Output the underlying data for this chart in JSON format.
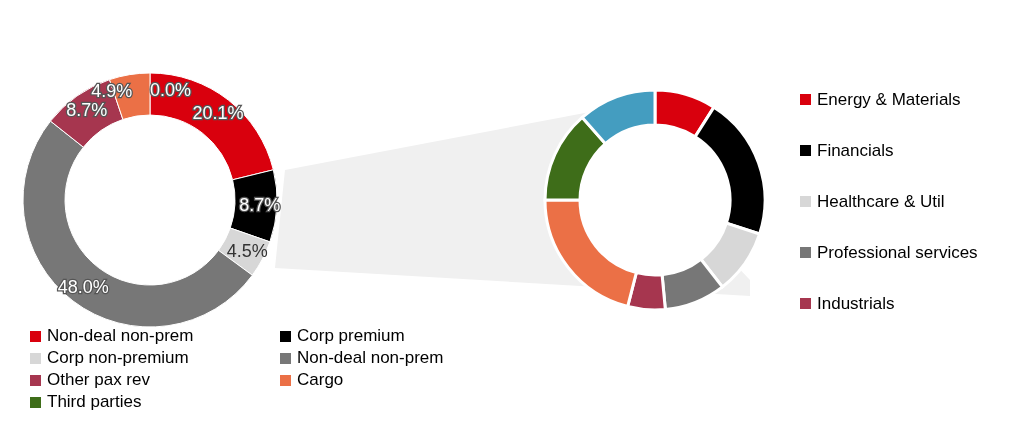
{
  "chart_data": [
    {
      "type": "donut",
      "categories": [
        "Non-deal non-prem",
        "Corp premium",
        "Corp non-premium",
        "Non-deal non-prem",
        "Other pax rev",
        "Cargo",
        "Third parties"
      ],
      "values": [
        20.1,
        8.7,
        4.5,
        48.0,
        8.7,
        4.9,
        0.0
      ],
      "colors": [
        "#d9000d",
        "#000000",
        "#d7d7d7",
        "#777777",
        "#a6364f",
        "#eb7046",
        "#3e6d19"
      ],
      "value_labels": [
        "20.1%",
        "8.7%",
        "4.5%",
        "48.0%",
        "8.7%",
        "4.9%",
        "0.0%"
      ],
      "legend": "bottom"
    },
    {
      "type": "donut",
      "categories": [
        "Energy & Materials",
        "Financials",
        "Healthcare & Util",
        "Professional services",
        "Industrials",
        null,
        null,
        null
      ],
      "values": [
        9,
        21,
        9.5,
        9,
        5.5,
        21,
        13.5,
        11.5
      ],
      "colors": [
        "#d9000d",
        "#000000",
        "#d7d7d7",
        "#777777",
        "#a6364f",
        "#eb7046",
        "#3e6d19",
        "#449dc0"
      ],
      "legend": "right"
    }
  ]
}
